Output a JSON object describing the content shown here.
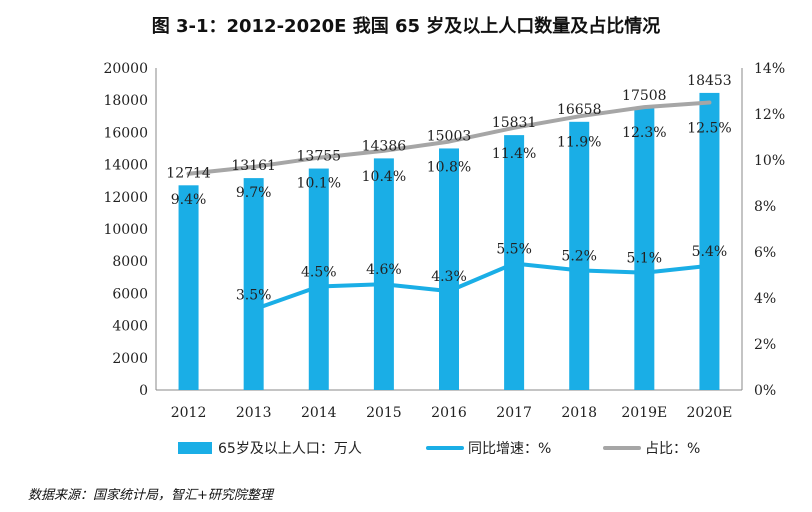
{
  "page": {
    "title": "图 3-1：2012-2020E 我国 65 岁及以上人口数量及占比情况",
    "source": "数据来源：国家统计局，智汇+研究院整理"
  },
  "chart_data": {
    "type": "bar",
    "title": "图 3-1：2012-2020E 我国 65 岁及以上人口数量及占比情况",
    "categories": [
      "2012",
      "2013",
      "2014",
      "2015",
      "2016",
      "2017",
      "2018",
      "2019E",
      "2020E"
    ],
    "y_left": {
      "min": 0,
      "max": 20000,
      "step": 2000,
      "ticks": [
        "0",
        "2000",
        "4000",
        "6000",
        "8000",
        "10000",
        "12000",
        "14000",
        "16000",
        "18000",
        "20000"
      ]
    },
    "y_right": {
      "min": 0,
      "max": 14,
      "step": 2,
      "ticks": [
        "0%",
        "2%",
        "4%",
        "6%",
        "8%",
        "10%",
        "12%",
        "14%"
      ]
    },
    "series": [
      {
        "name": "65岁及以上人口：万人",
        "type": "bar",
        "axis": "left",
        "color": "#1aaee6",
        "values": [
          12714,
          13161,
          13755,
          14386,
          15003,
          15831,
          16658,
          17508,
          18453
        ],
        "labels": [
          "12714",
          "13161",
          "13755",
          "14386",
          "15003",
          "15831",
          "16658",
          "17508",
          "18453"
        ]
      },
      {
        "name": "同比增速：%",
        "type": "line",
        "axis": "right",
        "color": "#1aaee6",
        "values": [
          null,
          3.5,
          4.5,
          4.6,
          4.3,
          5.5,
          5.2,
          5.1,
          5.4
        ],
        "labels": [
          "",
          "3.5%",
          "4.5%",
          "4.6%",
          "4.3%",
          "5.5%",
          "5.2%",
          "5.1%",
          "5.4%"
        ]
      },
      {
        "name": "占比：%",
        "type": "line",
        "axis": "right",
        "color": "#a6a6a6",
        "values": [
          9.4,
          9.7,
          10.1,
          10.4,
          10.8,
          11.4,
          11.9,
          12.3,
          12.5
        ],
        "labels": [
          "9.4%",
          "9.7%",
          "10.1%",
          "10.4%",
          "10.8%",
          "11.4%",
          "11.9%",
          "12.3%",
          "12.5%"
        ]
      }
    ],
    "legend_position": "bottom",
    "grid": false
  }
}
